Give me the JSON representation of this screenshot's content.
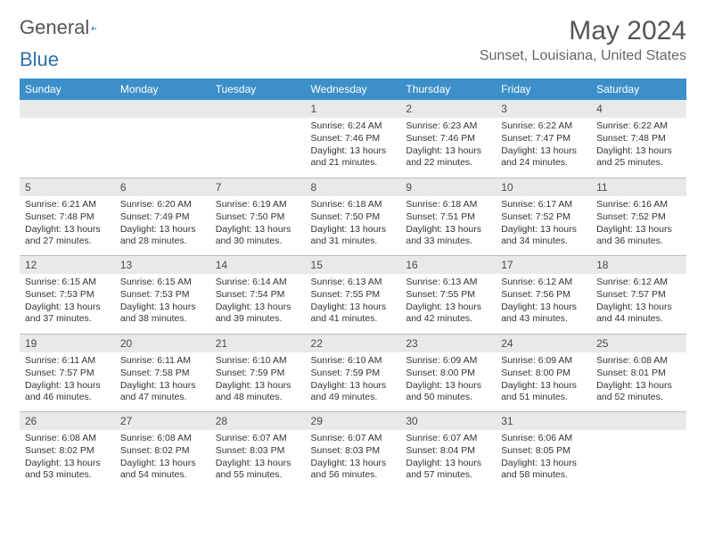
{
  "brand": {
    "part1": "General",
    "part2": "Blue"
  },
  "title": "May 2024",
  "location": "Sunset, Louisiana, United States",
  "colors": {
    "header_bg": "#3c8fc9",
    "header_text": "#ffffff",
    "daynum_bg": "#e8e9ea",
    "border": "#bcbcbc",
    "text": "#333333",
    "title": "#555555"
  },
  "weekdays": [
    "Sunday",
    "Monday",
    "Tuesday",
    "Wednesday",
    "Thursday",
    "Friday",
    "Saturday"
  ],
  "weeks": [
    [
      null,
      null,
      null,
      {
        "n": "1",
        "sr": "6:24 AM",
        "ss": "7:46 PM",
        "dl": "13 hours and 21 minutes."
      },
      {
        "n": "2",
        "sr": "6:23 AM",
        "ss": "7:46 PM",
        "dl": "13 hours and 22 minutes."
      },
      {
        "n": "3",
        "sr": "6:22 AM",
        "ss": "7:47 PM",
        "dl": "13 hours and 24 minutes."
      },
      {
        "n": "4",
        "sr": "6:22 AM",
        "ss": "7:48 PM",
        "dl": "13 hours and 25 minutes."
      }
    ],
    [
      {
        "n": "5",
        "sr": "6:21 AM",
        "ss": "7:48 PM",
        "dl": "13 hours and 27 minutes."
      },
      {
        "n": "6",
        "sr": "6:20 AM",
        "ss": "7:49 PM",
        "dl": "13 hours and 28 minutes."
      },
      {
        "n": "7",
        "sr": "6:19 AM",
        "ss": "7:50 PM",
        "dl": "13 hours and 30 minutes."
      },
      {
        "n": "8",
        "sr": "6:18 AM",
        "ss": "7:50 PM",
        "dl": "13 hours and 31 minutes."
      },
      {
        "n": "9",
        "sr": "6:18 AM",
        "ss": "7:51 PM",
        "dl": "13 hours and 33 minutes."
      },
      {
        "n": "10",
        "sr": "6:17 AM",
        "ss": "7:52 PM",
        "dl": "13 hours and 34 minutes."
      },
      {
        "n": "11",
        "sr": "6:16 AM",
        "ss": "7:52 PM",
        "dl": "13 hours and 36 minutes."
      }
    ],
    [
      {
        "n": "12",
        "sr": "6:15 AM",
        "ss": "7:53 PM",
        "dl": "13 hours and 37 minutes."
      },
      {
        "n": "13",
        "sr": "6:15 AM",
        "ss": "7:53 PM",
        "dl": "13 hours and 38 minutes."
      },
      {
        "n": "14",
        "sr": "6:14 AM",
        "ss": "7:54 PM",
        "dl": "13 hours and 39 minutes."
      },
      {
        "n": "15",
        "sr": "6:13 AM",
        "ss": "7:55 PM",
        "dl": "13 hours and 41 minutes."
      },
      {
        "n": "16",
        "sr": "6:13 AM",
        "ss": "7:55 PM",
        "dl": "13 hours and 42 minutes."
      },
      {
        "n": "17",
        "sr": "6:12 AM",
        "ss": "7:56 PM",
        "dl": "13 hours and 43 minutes."
      },
      {
        "n": "18",
        "sr": "6:12 AM",
        "ss": "7:57 PM",
        "dl": "13 hours and 44 minutes."
      }
    ],
    [
      {
        "n": "19",
        "sr": "6:11 AM",
        "ss": "7:57 PM",
        "dl": "13 hours and 46 minutes."
      },
      {
        "n": "20",
        "sr": "6:11 AM",
        "ss": "7:58 PM",
        "dl": "13 hours and 47 minutes."
      },
      {
        "n": "21",
        "sr": "6:10 AM",
        "ss": "7:59 PM",
        "dl": "13 hours and 48 minutes."
      },
      {
        "n": "22",
        "sr": "6:10 AM",
        "ss": "7:59 PM",
        "dl": "13 hours and 49 minutes."
      },
      {
        "n": "23",
        "sr": "6:09 AM",
        "ss": "8:00 PM",
        "dl": "13 hours and 50 minutes."
      },
      {
        "n": "24",
        "sr": "6:09 AM",
        "ss": "8:00 PM",
        "dl": "13 hours and 51 minutes."
      },
      {
        "n": "25",
        "sr": "6:08 AM",
        "ss": "8:01 PM",
        "dl": "13 hours and 52 minutes."
      }
    ],
    [
      {
        "n": "26",
        "sr": "6:08 AM",
        "ss": "8:02 PM",
        "dl": "13 hours and 53 minutes."
      },
      {
        "n": "27",
        "sr": "6:08 AM",
        "ss": "8:02 PM",
        "dl": "13 hours and 54 minutes."
      },
      {
        "n": "28",
        "sr": "6:07 AM",
        "ss": "8:03 PM",
        "dl": "13 hours and 55 minutes."
      },
      {
        "n": "29",
        "sr": "6:07 AM",
        "ss": "8:03 PM",
        "dl": "13 hours and 56 minutes."
      },
      {
        "n": "30",
        "sr": "6:07 AM",
        "ss": "8:04 PM",
        "dl": "13 hours and 57 minutes."
      },
      {
        "n": "31",
        "sr": "6:06 AM",
        "ss": "8:05 PM",
        "dl": "13 hours and 58 minutes."
      },
      null
    ]
  ],
  "labels": {
    "sunrise": "Sunrise:",
    "sunset": "Sunset:",
    "daylight": "Daylight:"
  }
}
